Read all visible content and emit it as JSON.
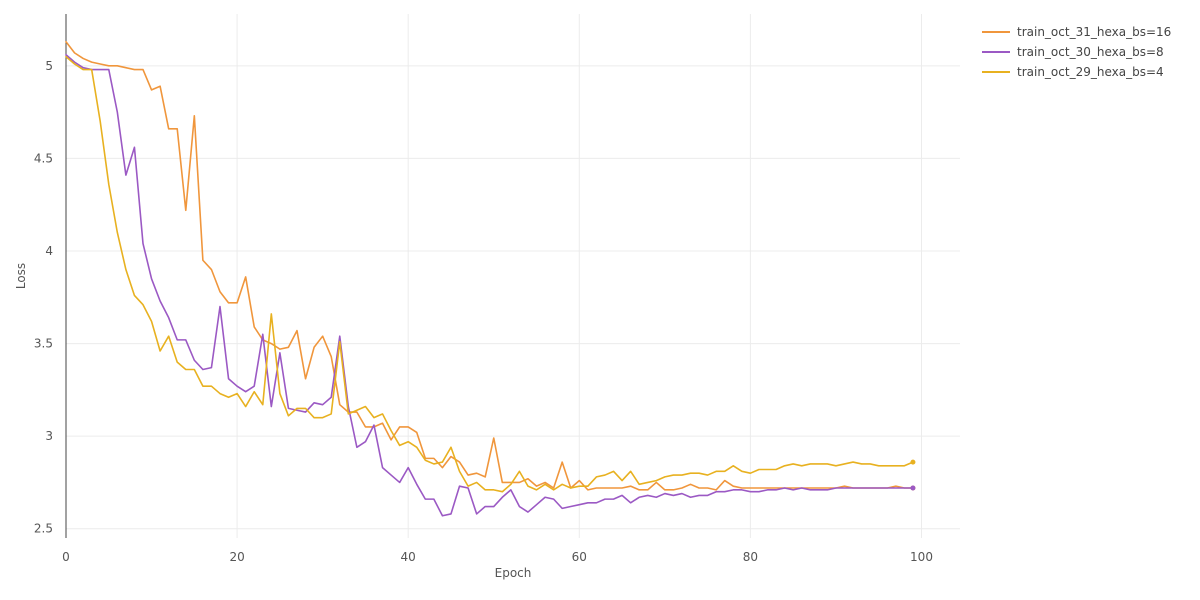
{
  "chart_data": {
    "type": "line",
    "xlabel": "Epoch",
    "ylabel": "Loss",
    "xlim": [
      0,
      104.5
    ],
    "ylim": [
      2.45,
      5.28
    ],
    "xticks": [
      0,
      20,
      40,
      60,
      80,
      100
    ],
    "yticks": [
      2.5,
      3,
      3.5,
      4,
      4.5,
      5
    ],
    "ytick_labels": [
      "2.5",
      "3",
      "3.5",
      "4",
      "4.5",
      "5"
    ],
    "xtick_labels": [
      "0",
      "20",
      "40",
      "60",
      "80",
      "100"
    ],
    "grid": true,
    "legend_position": "top-right",
    "x": [
      0,
      1,
      2,
      3,
      4,
      5,
      6,
      7,
      8,
      9,
      10,
      11,
      12,
      13,
      14,
      15,
      16,
      17,
      18,
      19,
      20,
      21,
      22,
      23,
      24,
      25,
      26,
      27,
      28,
      29,
      30,
      31,
      32,
      33,
      34,
      35,
      36,
      37,
      38,
      39,
      40,
      41,
      42,
      43,
      44,
      45,
      46,
      47,
      48,
      49,
      50,
      51,
      52,
      53,
      54,
      55,
      56,
      57,
      58,
      59,
      60,
      61,
      62,
      63,
      64,
      65,
      66,
      67,
      68,
      69,
      70,
      71,
      72,
      73,
      74,
      75,
      76,
      77,
      78,
      79,
      80,
      81,
      82,
      83,
      84,
      85,
      86,
      87,
      88,
      89,
      90,
      91,
      92,
      93,
      94,
      95,
      96,
      97,
      98,
      99
    ],
    "series": [
      {
        "name": "train_oct_31_hexa_bs=16",
        "color": "#f0963c",
        "values": [
          5.13,
          5.07,
          5.04,
          5.02,
          5.01,
          5.0,
          5.0,
          4.99,
          4.98,
          4.98,
          4.87,
          4.89,
          4.66,
          4.66,
          4.22,
          4.73,
          3.95,
          3.9,
          3.78,
          3.72,
          3.72,
          3.86,
          3.59,
          3.52,
          3.5,
          3.47,
          3.48,
          3.57,
          3.31,
          3.48,
          3.54,
          3.43,
          3.17,
          3.13,
          3.13,
          3.05,
          3.05,
          3.07,
          2.98,
          3.05,
          3.05,
          3.02,
          2.88,
          2.88,
          2.83,
          2.89,
          2.86,
          2.79,
          2.8,
          2.78,
          2.99,
          2.75,
          2.75,
          2.75,
          2.77,
          2.73,
          2.75,
          2.72,
          2.86,
          2.72,
          2.76,
          2.71,
          2.72,
          2.72,
          2.72,
          2.72,
          2.73,
          2.71,
          2.71,
          2.75,
          2.71,
          2.71,
          2.72,
          2.74,
          2.72,
          2.72,
          2.71,
          2.76,
          2.73,
          2.72,
          2.72,
          2.72,
          2.72,
          2.72,
          2.72,
          2.72,
          2.72,
          2.72,
          2.72,
          2.72,
          2.72,
          2.73,
          2.72,
          2.72,
          2.72,
          2.72,
          2.72,
          2.73,
          2.72,
          2.72
        ]
      },
      {
        "name": "train_oct_30_hexa_bs=8",
        "color": "#9b59c4",
        "values": [
          5.06,
          5.02,
          4.99,
          4.98,
          4.98,
          4.98,
          4.75,
          4.41,
          4.56,
          4.04,
          3.85,
          3.73,
          3.64,
          3.52,
          3.52,
          3.41,
          3.36,
          3.37,
          3.7,
          3.31,
          3.27,
          3.24,
          3.27,
          3.55,
          3.16,
          3.45,
          3.15,
          3.14,
          3.13,
          3.18,
          3.17,
          3.21,
          3.54,
          3.16,
          2.94,
          2.97,
          3.06,
          2.83,
          2.79,
          2.75,
          2.83,
          2.74,
          2.66,
          2.66,
          2.57,
          2.58,
          2.73,
          2.72,
          2.58,
          2.62,
          2.62,
          2.67,
          2.71,
          2.62,
          2.59,
          2.63,
          2.67,
          2.66,
          2.61,
          2.62,
          2.63,
          2.64,
          2.64,
          2.66,
          2.66,
          2.68,
          2.64,
          2.67,
          2.68,
          2.67,
          2.69,
          2.68,
          2.69,
          2.67,
          2.68,
          2.68,
          2.7,
          2.7,
          2.71,
          2.71,
          2.7,
          2.7,
          2.71,
          2.71,
          2.72,
          2.71,
          2.72,
          2.71,
          2.71,
          2.71,
          2.72,
          2.72,
          2.72,
          2.72,
          2.72,
          2.72,
          2.72,
          2.72,
          2.72,
          2.72
        ]
      },
      {
        "name": "train_oct_29_hexa_bs=4",
        "color": "#e8b120",
        "values": [
          5.05,
          5.01,
          4.98,
          4.98,
          4.7,
          4.36,
          4.1,
          3.9,
          3.76,
          3.71,
          3.62,
          3.46,
          3.54,
          3.4,
          3.36,
          3.36,
          3.27,
          3.27,
          3.23,
          3.21,
          3.23,
          3.16,
          3.24,
          3.17,
          3.66,
          3.23,
          3.11,
          3.15,
          3.15,
          3.1,
          3.1,
          3.12,
          3.51,
          3.12,
          3.14,
          3.16,
          3.1,
          3.12,
          3.03,
          2.95,
          2.97,
          2.94,
          2.87,
          2.85,
          2.86,
          2.94,
          2.81,
          2.73,
          2.75,
          2.71,
          2.71,
          2.7,
          2.74,
          2.81,
          2.73,
          2.71,
          2.74,
          2.71,
          2.74,
          2.72,
          2.73,
          2.73,
          2.78,
          2.79,
          2.81,
          2.76,
          2.81,
          2.74,
          2.75,
          2.76,
          2.78,
          2.79,
          2.79,
          2.8,
          2.8,
          2.79,
          2.81,
          2.81,
          2.84,
          2.81,
          2.8,
          2.82,
          2.82,
          2.82,
          2.84,
          2.85,
          2.84,
          2.85,
          2.85,
          2.85,
          2.84,
          2.85,
          2.86,
          2.85,
          2.85,
          2.84,
          2.84,
          2.84,
          2.84,
          2.86
        ]
      }
    ]
  }
}
